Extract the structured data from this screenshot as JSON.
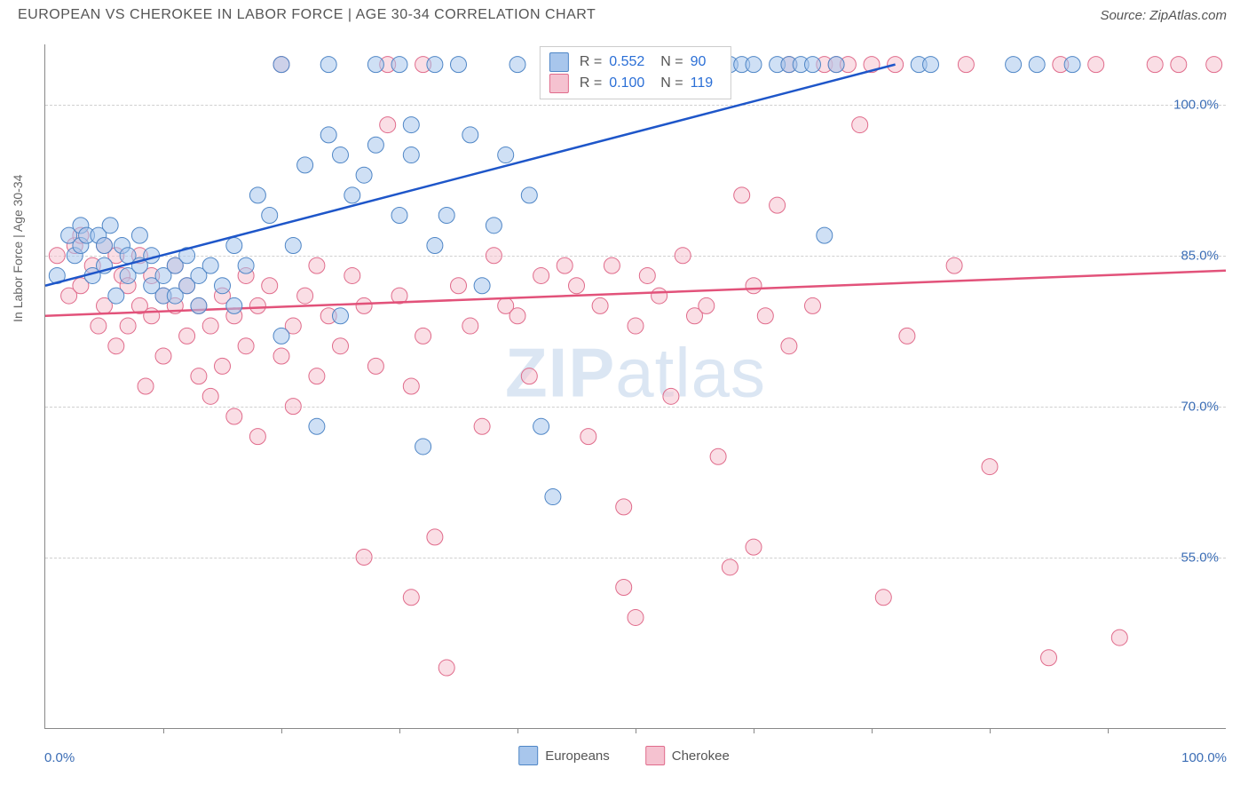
{
  "header": {
    "title": "EUROPEAN VS CHEROKEE IN LABOR FORCE | AGE 30-34 CORRELATION CHART",
    "source": "Source: ZipAtlas.com"
  },
  "axes": {
    "y_label": "In Labor Force | Age 30-34",
    "x_origin": "0.0%",
    "x_max": "100.0%",
    "y_ticks": [
      {
        "label": "100.0%",
        "value": 100
      },
      {
        "label": "85.0%",
        "value": 85
      },
      {
        "label": "70.0%",
        "value": 70
      },
      {
        "label": "55.0%",
        "value": 55
      }
    ],
    "y_range": [
      38,
      106
    ],
    "x_range": [
      0,
      100
    ],
    "x_tick_positions": [
      10,
      20,
      30,
      40,
      50,
      60,
      70,
      80,
      90
    ]
  },
  "watermark": {
    "zip": "ZIP",
    "atlas": "atlas"
  },
  "series_legend": [
    {
      "label": "Europeans",
      "fill": "#a8c6ec",
      "stroke": "#4f86c6"
    },
    {
      "label": "Cherokee",
      "fill": "#f5c2d0",
      "stroke": "#e06b8b"
    }
  ],
  "stats_box": {
    "rows": [
      {
        "swatch_fill": "#a8c6ec",
        "swatch_stroke": "#4f86c6",
        "r_label": "R =",
        "r_value": "0.552",
        "n_label": "N =",
        "n_value": "90"
      },
      {
        "swatch_fill": "#f5c2d0",
        "swatch_stroke": "#e06b8b",
        "r_label": "R =",
        "r_value": "0.100",
        "n_label": "N =",
        "n_value": "119"
      }
    ]
  },
  "chart": {
    "type": "scatter",
    "background_color": "#ffffff",
    "grid_color": "#d0d0d0",
    "marker_radius": 9,
    "marker_opacity": 0.55,
    "series": {
      "europeans": {
        "fill": "#a8c6ec",
        "stroke": "#4f86c6",
        "regression": {
          "x1": 0,
          "y1": 82,
          "x2": 72,
          "y2": 104,
          "color": "#1e56c9",
          "width": 2.5
        },
        "points": [
          [
            1,
            83
          ],
          [
            2,
            87
          ],
          [
            2.5,
            85
          ],
          [
            3,
            86
          ],
          [
            3,
            88
          ],
          [
            3.5,
            87
          ],
          [
            4,
            83
          ],
          [
            4.5,
            87
          ],
          [
            5,
            86
          ],
          [
            5,
            84
          ],
          [
            5.5,
            88
          ],
          [
            6,
            81
          ],
          [
            6.5,
            86
          ],
          [
            7,
            85
          ],
          [
            7,
            83
          ],
          [
            8,
            87
          ],
          [
            8,
            84
          ],
          [
            9,
            82
          ],
          [
            9,
            85
          ],
          [
            10,
            83
          ],
          [
            10,
            81
          ],
          [
            11,
            84
          ],
          [
            11,
            81
          ],
          [
            12,
            82
          ],
          [
            12,
            85
          ],
          [
            13,
            80
          ],
          [
            13,
            83
          ],
          [
            14,
            84
          ],
          [
            15,
            82
          ],
          [
            16,
            80
          ],
          [
            16,
            86
          ],
          [
            17,
            84
          ],
          [
            18,
            91
          ],
          [
            19,
            89
          ],
          [
            20,
            77
          ],
          [
            20,
            104
          ],
          [
            21,
            86
          ],
          [
            22,
            94
          ],
          [
            23,
            68
          ],
          [
            24,
            97
          ],
          [
            24,
            104
          ],
          [
            25,
            95
          ],
          [
            25,
            79
          ],
          [
            26,
            91
          ],
          [
            27,
            93
          ],
          [
            28,
            96
          ],
          [
            28,
            104
          ],
          [
            30,
            104
          ],
          [
            30,
            89
          ],
          [
            31,
            95
          ],
          [
            31,
            98
          ],
          [
            32,
            66
          ],
          [
            33,
            86
          ],
          [
            33,
            104
          ],
          [
            34,
            89
          ],
          [
            35,
            104
          ],
          [
            36,
            97
          ],
          [
            37,
            82
          ],
          [
            38,
            88
          ],
          [
            39,
            95
          ],
          [
            40,
            104
          ],
          [
            41,
            91
          ],
          [
            42,
            68
          ],
          [
            43,
            61
          ],
          [
            44,
            104
          ],
          [
            45,
            104
          ],
          [
            58,
            104
          ],
          [
            59,
            104
          ],
          [
            60,
            104
          ],
          [
            62,
            104
          ],
          [
            63,
            104
          ],
          [
            64,
            104
          ],
          [
            65,
            104
          ],
          [
            66,
            87
          ],
          [
            67,
            104
          ],
          [
            74,
            104
          ],
          [
            75,
            104
          ],
          [
            82,
            104
          ],
          [
            84,
            104
          ],
          [
            87,
            104
          ]
        ]
      },
      "cherokee": {
        "fill": "#f5c2d0",
        "stroke": "#e06b8b",
        "regression": {
          "x1": 0,
          "y1": 79,
          "x2": 100,
          "y2": 83.5,
          "color": "#e2527a",
          "width": 2.5
        },
        "points": [
          [
            1,
            85
          ],
          [
            2,
            81
          ],
          [
            2.5,
            86
          ],
          [
            3,
            87
          ],
          [
            3,
            82
          ],
          [
            4,
            84
          ],
          [
            4.5,
            78
          ],
          [
            5,
            80
          ],
          [
            5,
            86
          ],
          [
            6,
            85
          ],
          [
            6,
            76
          ],
          [
            6.5,
            83
          ],
          [
            7,
            78
          ],
          [
            7,
            82
          ],
          [
            8,
            80
          ],
          [
            8,
            85
          ],
          [
            8.5,
            72
          ],
          [
            9,
            79
          ],
          [
            9,
            83
          ],
          [
            10,
            81
          ],
          [
            10,
            75
          ],
          [
            11,
            80
          ],
          [
            11,
            84
          ],
          [
            12,
            77
          ],
          [
            12,
            82
          ],
          [
            13,
            73
          ],
          [
            13,
            80
          ],
          [
            14,
            78
          ],
          [
            14,
            71
          ],
          [
            15,
            81
          ],
          [
            15,
            74
          ],
          [
            16,
            79
          ],
          [
            16,
            69
          ],
          [
            17,
            83
          ],
          [
            17,
            76
          ],
          [
            18,
            80
          ],
          [
            18,
            67
          ],
          [
            19,
            82
          ],
          [
            20,
            75
          ],
          [
            20,
            104
          ],
          [
            21,
            78
          ],
          [
            21,
            70
          ],
          [
            22,
            81
          ],
          [
            23,
            73
          ],
          [
            23,
            84
          ],
          [
            24,
            79
          ],
          [
            25,
            76
          ],
          [
            26,
            83
          ],
          [
            27,
            55
          ],
          [
            27,
            80
          ],
          [
            28,
            74
          ],
          [
            29,
            98
          ],
          [
            29,
            104
          ],
          [
            30,
            81
          ],
          [
            31,
            72
          ],
          [
            31,
            51
          ],
          [
            32,
            104
          ],
          [
            32,
            77
          ],
          [
            33,
            57
          ],
          [
            34,
            44
          ],
          [
            35,
            82
          ],
          [
            36,
            78
          ],
          [
            37,
            68
          ],
          [
            38,
            85
          ],
          [
            39,
            80
          ],
          [
            40,
            79
          ],
          [
            41,
            73
          ],
          [
            42,
            83
          ],
          [
            43,
            104
          ],
          [
            44,
            84
          ],
          [
            45,
            82
          ],
          [
            46,
            67
          ],
          [
            46,
            104
          ],
          [
            47,
            80
          ],
          [
            48,
            84
          ],
          [
            49,
            52
          ],
          [
            49,
            60
          ],
          [
            50,
            78
          ],
          [
            50,
            49
          ],
          [
            51,
            83
          ],
          [
            52,
            81
          ],
          [
            53,
            71
          ],
          [
            54,
            85
          ],
          [
            55,
            79
          ],
          [
            56,
            80
          ],
          [
            57,
            65
          ],
          [
            58,
            54
          ],
          [
            59,
            91
          ],
          [
            60,
            82
          ],
          [
            60,
            56
          ],
          [
            61,
            79
          ],
          [
            62,
            90
          ],
          [
            63,
            104
          ],
          [
            63,
            76
          ],
          [
            65,
            80
          ],
          [
            66,
            104
          ],
          [
            67,
            104
          ],
          [
            68,
            104
          ],
          [
            69,
            98
          ],
          [
            70,
            104
          ],
          [
            71,
            51
          ],
          [
            72,
            104
          ],
          [
            73,
            77
          ],
          [
            77,
            84
          ],
          [
            78,
            104
          ],
          [
            80,
            64
          ],
          [
            85,
            45
          ],
          [
            86,
            104
          ],
          [
            89,
            104
          ],
          [
            91,
            47
          ],
          [
            94,
            104
          ],
          [
            96,
            104
          ],
          [
            99,
            104
          ]
        ]
      }
    }
  }
}
